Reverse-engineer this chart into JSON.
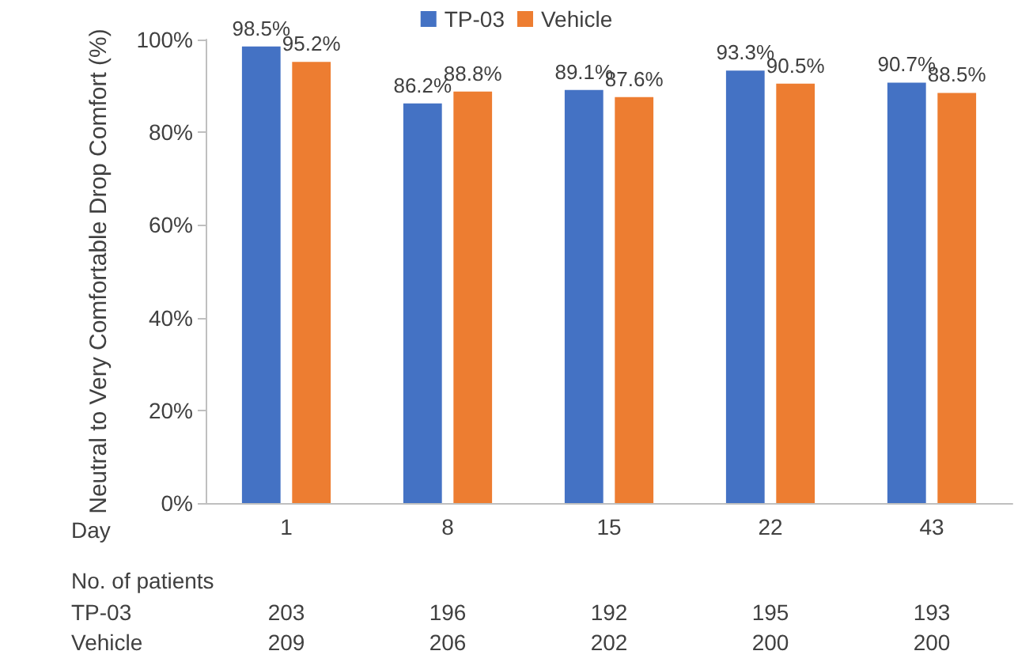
{
  "chart_data": {
    "type": "bar",
    "xlabel": "Day",
    "ylabel": "Neutral to Very Comfortable Drop Comfort (%)",
    "categories": [
      "1",
      "8",
      "15",
      "22",
      "43"
    ],
    "series": [
      {
        "name": "TP-03",
        "color": "#4472c4",
        "values": [
          98.5,
          86.2,
          89.1,
          93.3,
          90.7
        ],
        "value_labels": [
          "98.5%",
          "86.2%",
          "89.1%",
          "93.3%",
          "90.7%"
        ]
      },
      {
        "name": "Vehicle",
        "color": "#ed7d31",
        "values": [
          95.2,
          88.8,
          87.6,
          90.5,
          88.5
        ],
        "value_labels": [
          "95.2%",
          "88.8%",
          "87.6%",
          "90.5%",
          "88.5%"
        ]
      }
    ],
    "ylim": [
      0,
      100
    ],
    "yticks": [
      {
        "value": 0,
        "label": "0%"
      },
      {
        "value": 20,
        "label": "20%"
      },
      {
        "value": 40,
        "label": "40%"
      },
      {
        "value": 60,
        "label": "60%"
      },
      {
        "value": 80,
        "label": "80%"
      },
      {
        "value": 100,
        "label": "100%"
      }
    ],
    "grid": false,
    "legend": "top",
    "annotations": [
      "No. of patients",
      "TP-03",
      "203",
      "196",
      "192",
      "195",
      "193",
      "Vehicle",
      "209",
      "206",
      "202",
      "200",
      "200"
    ]
  }
}
